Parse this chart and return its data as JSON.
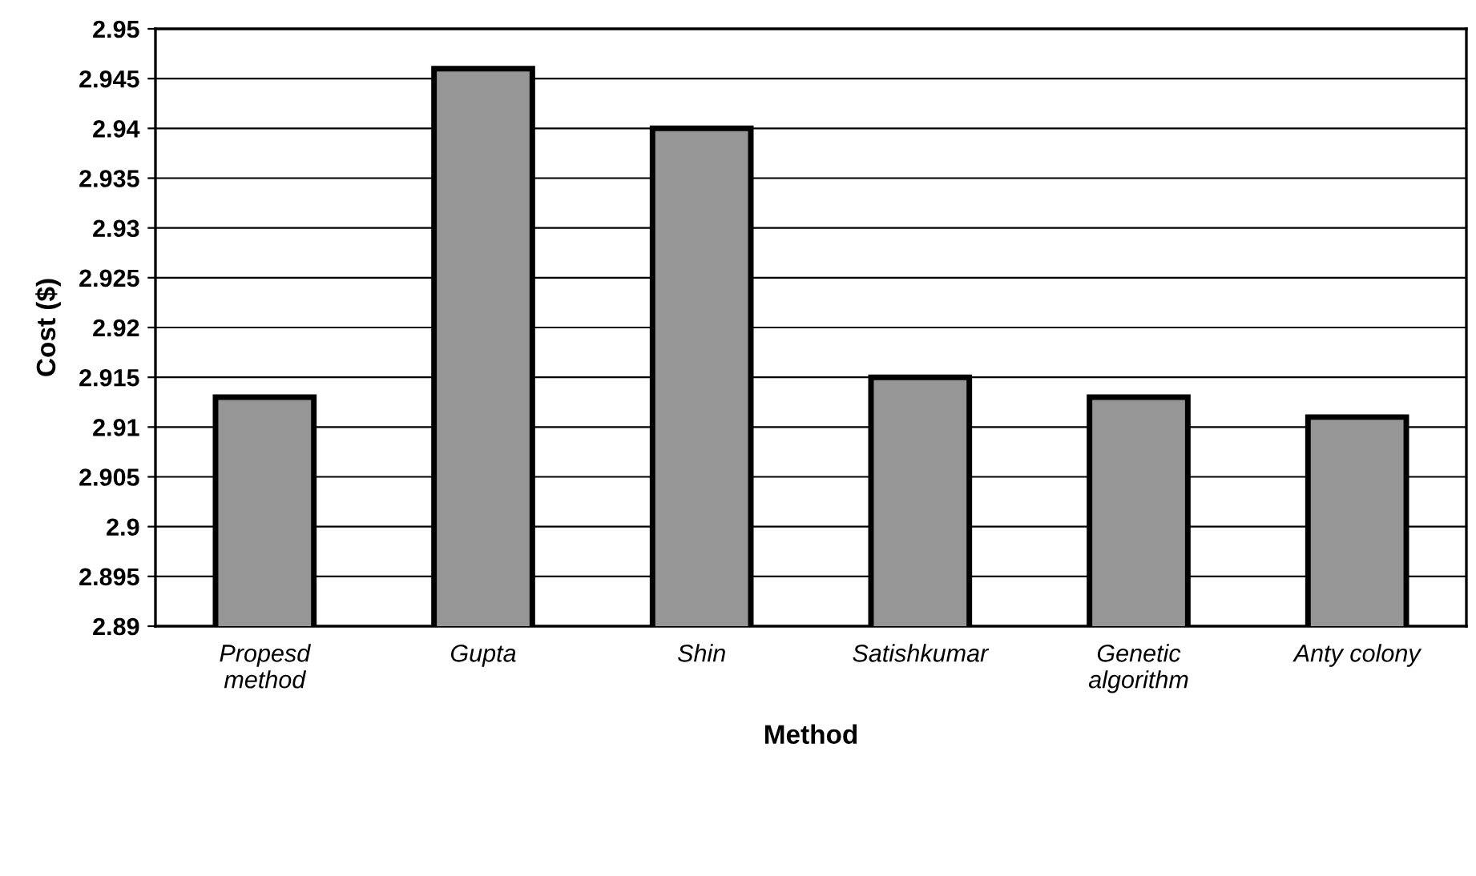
{
  "chart_data": {
    "type": "bar",
    "xlabel": "Method",
    "ylabel": "Cost ($)",
    "categories": [
      "Propesd\nmethod",
      "Gupta",
      "Shin",
      "Satishkumar",
      "Genetic\nalgorithm",
      "Anty colony"
    ],
    "values": [
      2.913,
      2.946,
      2.94,
      2.915,
      2.913,
      2.911
    ],
    "color": "#969696",
    "ylim": [
      2.89,
      2.95
    ],
    "yticks": [
      2.89,
      2.895,
      2.9,
      2.905,
      2.91,
      2.915,
      2.92,
      2.925,
      2.93,
      2.935,
      2.94,
      2.945,
      2.95
    ],
    "grid": "y"
  }
}
